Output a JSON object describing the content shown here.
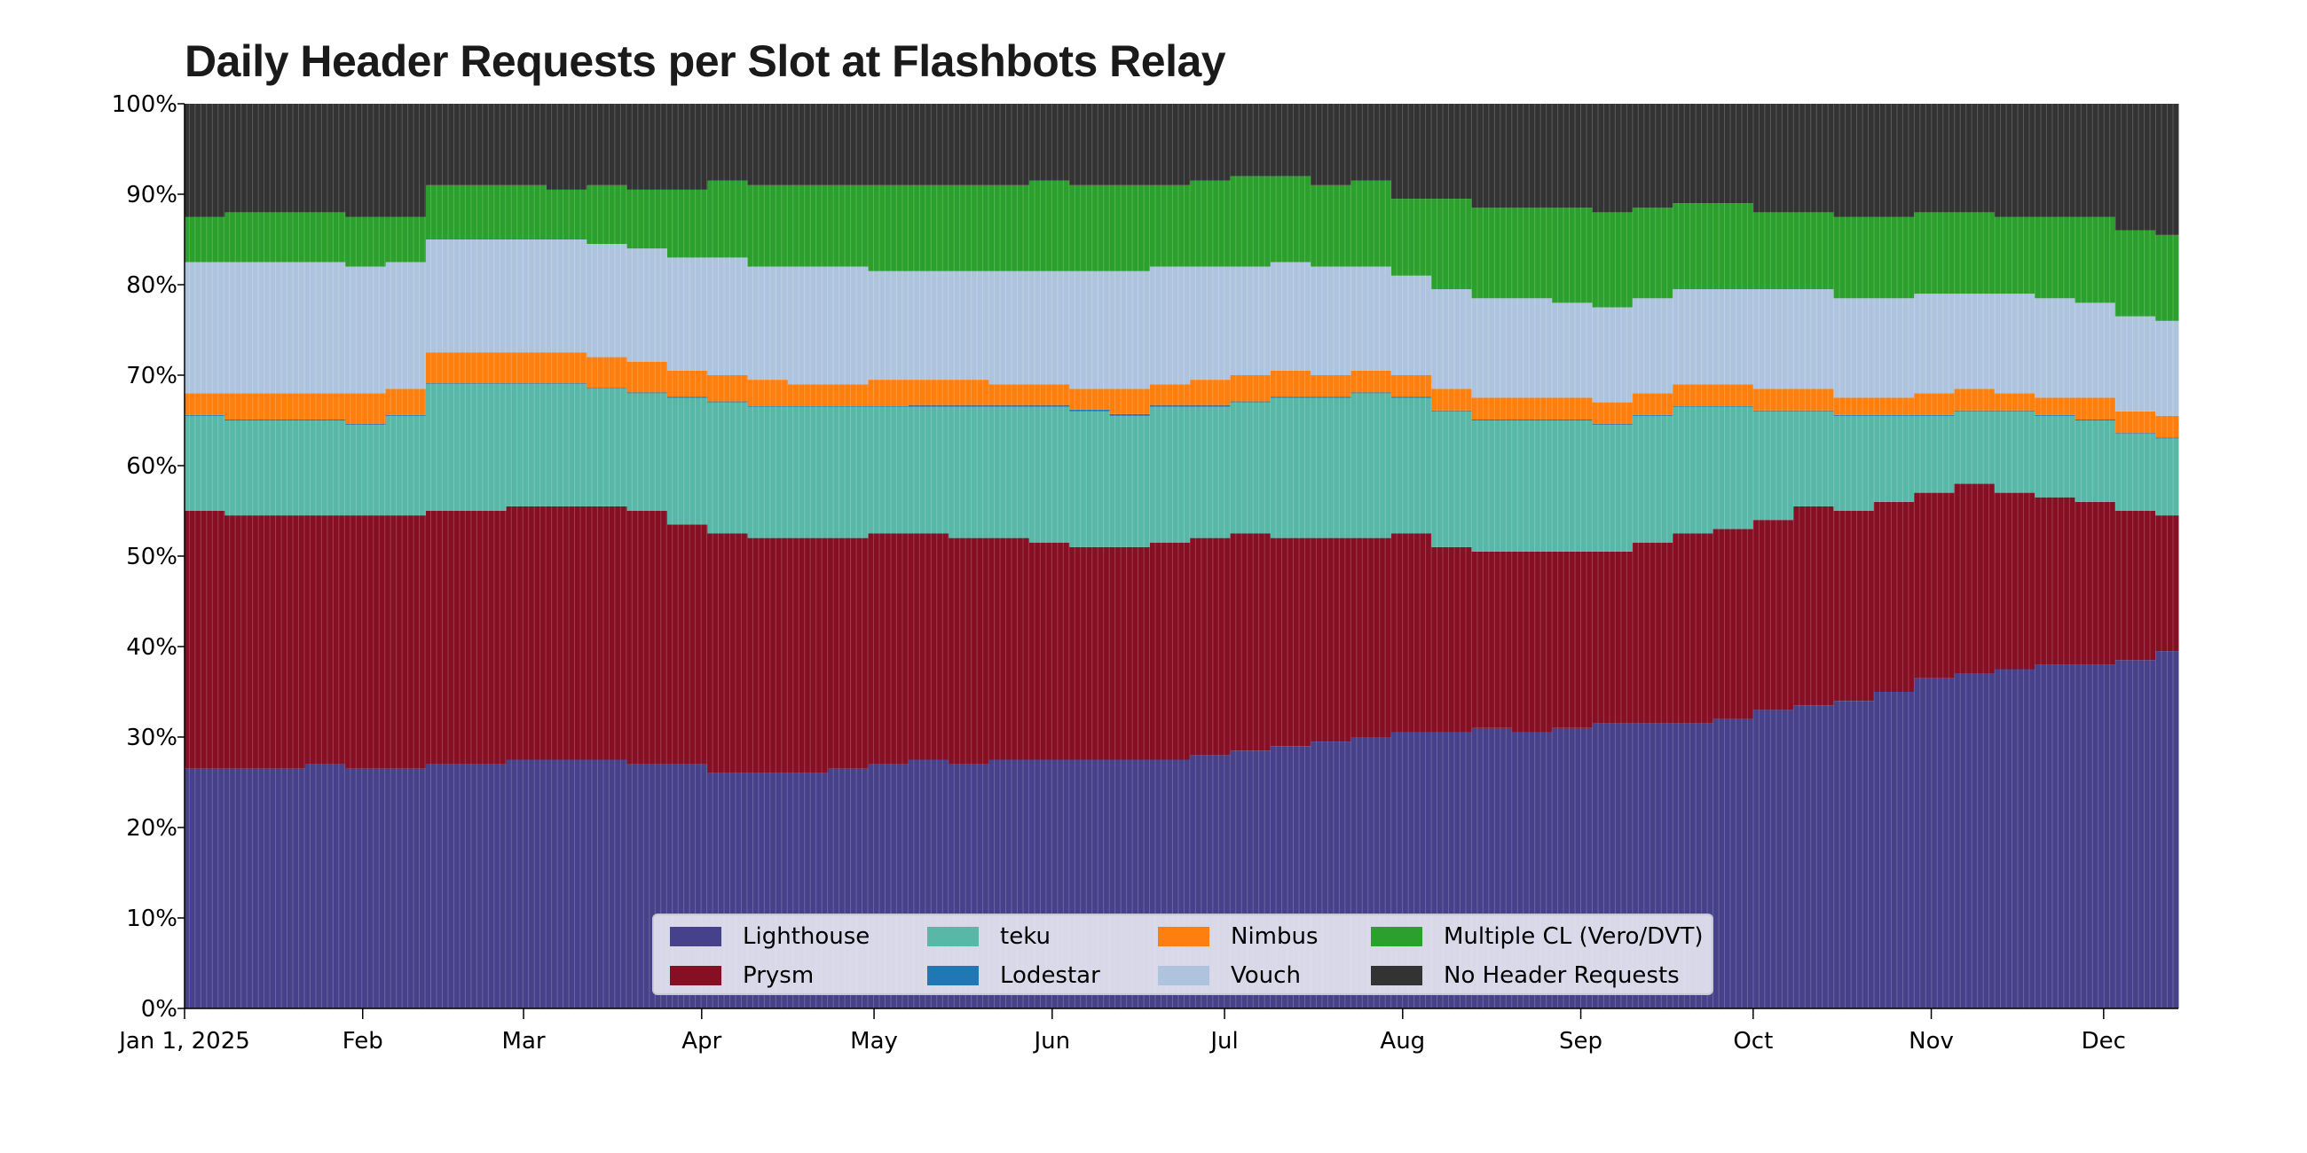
{
  "chart_data": {
    "type": "bar",
    "stacked": true,
    "title": "Daily Header Requests per Slot at Flashbots Relay",
    "xlabel": "",
    "ylabel": "",
    "ylim": [
      0,
      100
    ],
    "y_ticks": [
      "0%",
      "10%",
      "20%",
      "30%",
      "40%",
      "50%",
      "60%",
      "70%",
      "80%",
      "90%",
      "100%"
    ],
    "x_day_range": [
      0,
      347
    ],
    "x_ticks": [
      {
        "label": "Jan 1, 2025",
        "day": 0
      },
      {
        "label": "Feb",
        "day": 31
      },
      {
        "label": "Mar",
        "day": 59
      },
      {
        "label": "Apr",
        "day": 90
      },
      {
        "label": "May",
        "day": 120
      },
      {
        "label": "Jun",
        "day": 151
      },
      {
        "label": "Jul",
        "day": 181
      },
      {
        "label": "Aug",
        "day": 212
      },
      {
        "label": "Sep",
        "day": 243
      },
      {
        "label": "Oct",
        "day": 273
      },
      {
        "label": "Nov",
        "day": 304
      },
      {
        "label": "Dec",
        "day": 334
      }
    ],
    "legend_position": "bottom-center",
    "x": [
      "Jan 1",
      "Jan 8",
      "Jan 15",
      "Jan 22",
      "Jan 29",
      "Feb 5",
      "Feb 12",
      "Feb 19",
      "Feb 26",
      "Mar 5",
      "Mar 12",
      "Mar 19",
      "Mar 26",
      "Apr 2",
      "Apr 9",
      "Apr 16",
      "Apr 23",
      "Apr 30",
      "May 7",
      "May 14",
      "May 21",
      "May 28",
      "Jun 4",
      "Jun 11",
      "Jun 18",
      "Jun 25",
      "Jul 2",
      "Jul 9",
      "Jul 16",
      "Jul 23",
      "Jul 30",
      "Aug 6",
      "Aug 13",
      "Aug 20",
      "Aug 27",
      "Sep 3",
      "Sep 10",
      "Sep 17",
      "Sep 24",
      "Oct 1",
      "Oct 8",
      "Oct 15",
      "Oct 22",
      "Oct 29",
      "Nov 5",
      "Nov 12",
      "Nov 19",
      "Nov 26",
      "Dec 3",
      "Dec 10"
    ],
    "series": [
      {
        "name": "Lighthouse",
        "color": "#46418a",
        "values": [
          26.5,
          26.5,
          26.5,
          27,
          26.5,
          26.5,
          27,
          27,
          27.5,
          27.5,
          27.5,
          27,
          27,
          26,
          26,
          26,
          26.5,
          27,
          27.5,
          27,
          27.5,
          27.5,
          27.5,
          27.5,
          27.5,
          28,
          28.5,
          29,
          29.5,
          30,
          30.5,
          30.5,
          31,
          30.5,
          31,
          31.5,
          31.5,
          31.5,
          32,
          33,
          33.5,
          34,
          35,
          36.5,
          37,
          37.5,
          38,
          38,
          38.5,
          39.5
        ]
      },
      {
        "name": "Prysm",
        "color": "#860f24",
        "values": [
          28.5,
          28,
          28,
          27.5,
          28,
          28,
          28,
          28,
          28,
          28,
          28,
          28,
          26.5,
          26.5,
          26,
          26,
          25.5,
          25.5,
          25,
          25,
          24.5,
          24,
          23.5,
          23.5,
          24,
          24,
          24,
          23,
          22.5,
          22,
          22,
          20.5,
          19.5,
          20,
          19.5,
          19,
          20,
          21,
          21,
          21,
          22,
          21,
          21,
          20.5,
          21,
          19.5,
          18.5,
          18,
          16.5,
          15
        ]
      },
      {
        "name": "teku",
        "color": "#58b8a8",
        "values": [
          10.5,
          10.5,
          10.5,
          10.5,
          10,
          11,
          14,
          14,
          13.5,
          13.5,
          13,
          13,
          14,
          14.5,
          14.5,
          14.5,
          14.5,
          14,
          14,
          14.5,
          14.5,
          15,
          15,
          14.5,
          15,
          14.5,
          14.5,
          15.5,
          15.5,
          16,
          15,
          15,
          14.5,
          14.5,
          14.5,
          14,
          14,
          14,
          13.5,
          12,
          10.5,
          10.5,
          9.5,
          8.5,
          8,
          9,
          9,
          9,
          8.5,
          8.5
        ]
      },
      {
        "name": "Lodestar",
        "color": "#1f77b4",
        "values": [
          0.1,
          0.1,
          0.1,
          0.1,
          0.1,
          0.1,
          0.1,
          0.1,
          0.1,
          0.1,
          0.1,
          0.1,
          0.1,
          0.1,
          0.1,
          0.1,
          0.1,
          0.1,
          0.2,
          0.2,
          0.2,
          0.2,
          0.2,
          0.2,
          0.2,
          0.2,
          0.1,
          0.1,
          0.1,
          0.1,
          0.1,
          0.1,
          0.1,
          0.1,
          0.1,
          0.1,
          0.1,
          0.1,
          0.1,
          0.1,
          0.1,
          0.1,
          0.1,
          0.1,
          0.1,
          0.1,
          0.1,
          0.1,
          0.1,
          0.1
        ]
      },
      {
        "name": "Nimbus",
        "color": "#ff7f0e",
        "values": [
          2.4,
          2.9,
          2.9,
          2.9,
          3.4,
          2.9,
          3.4,
          3.4,
          3.4,
          3.4,
          3.4,
          3.4,
          2.9,
          2.9,
          2.9,
          2.4,
          2.4,
          2.9,
          2.8,
          2.8,
          2.3,
          2.3,
          2.3,
          2.8,
          2.3,
          2.8,
          2.9,
          2.9,
          2.4,
          2.4,
          2.4,
          2.4,
          2.4,
          2.4,
          2.4,
          2.4,
          2.4,
          2.4,
          2.4,
          2.4,
          2.4,
          1.9,
          1.9,
          2.4,
          2.4,
          1.9,
          1.9,
          2.4,
          2.4,
          2.4
        ]
      },
      {
        "name": "Vouch",
        "color": "#aec4de",
        "values": [
          14.5,
          14.5,
          14.5,
          14.5,
          14,
          14,
          12.5,
          12.5,
          12.5,
          12.5,
          12.5,
          12.5,
          12.5,
          13,
          12.5,
          13,
          13,
          12,
          12,
          12,
          12.5,
          12.5,
          13,
          13,
          13,
          12.5,
          12,
          12,
          12,
          11.5,
          11,
          11,
          11,
          11,
          10.5,
          10.5,
          10.5,
          10.5,
          10.5,
          11,
          11,
          11,
          11,
          11,
          10.5,
          11,
          11,
          10.5,
          10.5,
          10.5
        ]
      },
      {
        "name": "Multiple CL (Vero/DVT)",
        "color": "#2ca02c",
        "values": [
          5,
          5.5,
          5.5,
          5.5,
          5.5,
          5,
          6,
          6,
          6,
          5.5,
          6.5,
          6.5,
          7.5,
          8.5,
          9,
          9,
          9,
          9.5,
          9.5,
          9.5,
          9.5,
          10,
          9.5,
          9.5,
          9,
          9.5,
          10,
          9.5,
          9,
          9.5,
          8.5,
          10,
          10,
          10,
          10.5,
          10.5,
          10,
          9.5,
          9.5,
          8.5,
          8.5,
          9,
          9,
          9,
          9,
          8.5,
          9,
          9.5,
          9.5,
          9.5
        ]
      },
      {
        "name": "No Header Requests",
        "color": "#333333",
        "values": [
          12.5,
          12,
          12,
          12,
          12.5,
          12.5,
          9,
          9,
          9,
          9.5,
          9,
          9.5,
          9.5,
          8.5,
          9,
          9,
          9,
          9,
          9,
          9,
          9,
          8.5,
          9,
          9,
          9,
          8.5,
          8,
          8,
          9,
          8.5,
          10.5,
          10.5,
          11.5,
          11.5,
          11.5,
          12,
          11.5,
          11,
          11,
          12,
          12,
          12.5,
          12.5,
          12,
          12,
          12.5,
          12.5,
          12.5,
          14,
          14.5
        ]
      }
    ]
  }
}
